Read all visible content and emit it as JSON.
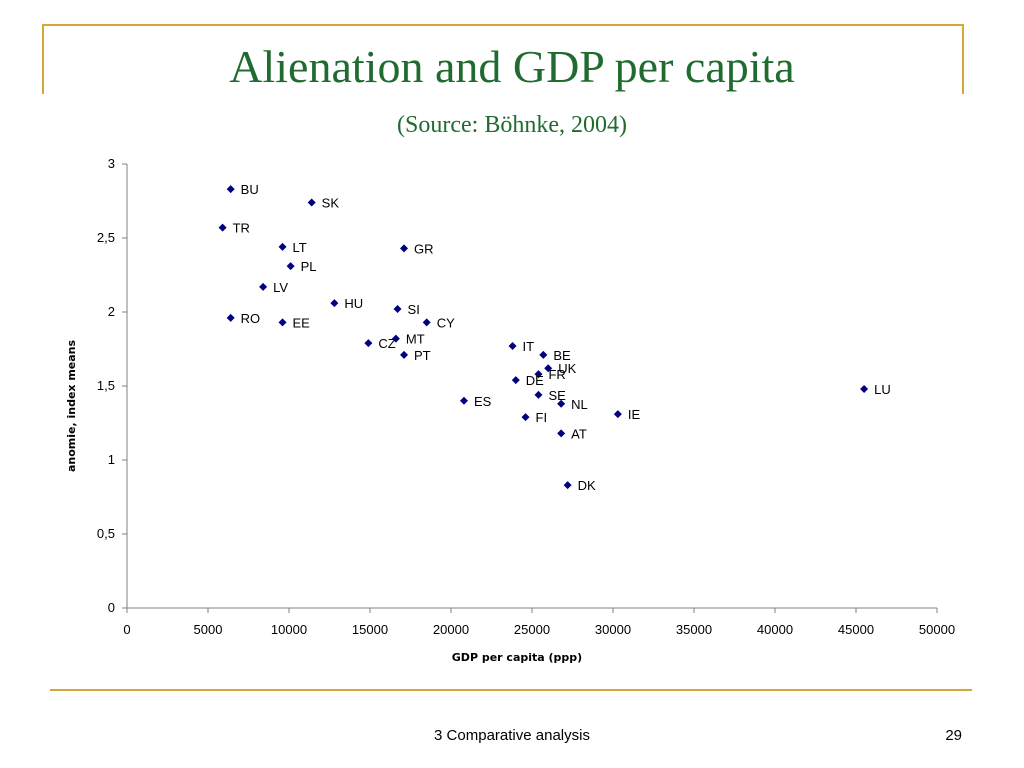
{
  "slide": {
    "title": "Alienation and GDP per capita",
    "subtitle": "(Source: Böhnke, 2004)",
    "footer": "3 Comparative analysis",
    "page_number": "29"
  },
  "colors": {
    "title": "#1f6b30",
    "accent_lines": "#d4a838",
    "marker": "#000080"
  },
  "chart_data": {
    "type": "scatter",
    "title": "",
    "xlabel": "GDP per capita (ppp)",
    "ylabel": "anomie, index means",
    "xlim": [
      0,
      50000
    ],
    "ylim": [
      0,
      3
    ],
    "x_ticks": [
      "0",
      "5000",
      "10000",
      "15000",
      "20000",
      "25000",
      "30000",
      "35000",
      "40000",
      "45000",
      "50000"
    ],
    "y_ticks": [
      "0",
      "0,5",
      "1",
      "1,5",
      "2",
      "2,5",
      "3"
    ],
    "grid": false,
    "legend": "none",
    "points": [
      {
        "label": "BU",
        "x": 6400,
        "y": 2.83
      },
      {
        "label": "SK",
        "x": 11400,
        "y": 2.74
      },
      {
        "label": "TR",
        "x": 5900,
        "y": 2.57
      },
      {
        "label": "LT",
        "x": 9600,
        "y": 2.44
      },
      {
        "label": "GR",
        "x": 17100,
        "y": 2.43
      },
      {
        "label": "PL",
        "x": 10100,
        "y": 2.31
      },
      {
        "label": "LV",
        "x": 8400,
        "y": 2.17
      },
      {
        "label": "HU",
        "x": 12800,
        "y": 2.06
      },
      {
        "label": "SI",
        "x": 16700,
        "y": 2.02
      },
      {
        "label": "RO",
        "x": 6400,
        "y": 1.96
      },
      {
        "label": "EE",
        "x": 9600,
        "y": 1.93
      },
      {
        "label": "CY",
        "x": 18500,
        "y": 1.93
      },
      {
        "label": "MT",
        "x": 16600,
        "y": 1.82
      },
      {
        "label": "CZ",
        "x": 14900,
        "y": 1.79
      },
      {
        "label": "IT",
        "x": 23800,
        "y": 1.77
      },
      {
        "label": "PT",
        "x": 17100,
        "y": 1.71
      },
      {
        "label": "BE",
        "x": 25700,
        "y": 1.71
      },
      {
        "label": "UK",
        "x": 26000,
        "y": 1.62
      },
      {
        "label": "FR",
        "x": 25400,
        "y": 1.58
      },
      {
        "label": "DE",
        "x": 24000,
        "y": 1.54
      },
      {
        "label": "LU",
        "x": 45500,
        "y": 1.48
      },
      {
        "label": "SE",
        "x": 25400,
        "y": 1.44
      },
      {
        "label": "ES",
        "x": 20800,
        "y": 1.4
      },
      {
        "label": "NL",
        "x": 26800,
        "y": 1.38
      },
      {
        "label": "IE",
        "x": 30300,
        "y": 1.31
      },
      {
        "label": "FI",
        "x": 24600,
        "y": 1.29
      },
      {
        "label": "AT",
        "x": 26800,
        "y": 1.18
      },
      {
        "label": "DK",
        "x": 27200,
        "y": 0.83
      }
    ]
  }
}
